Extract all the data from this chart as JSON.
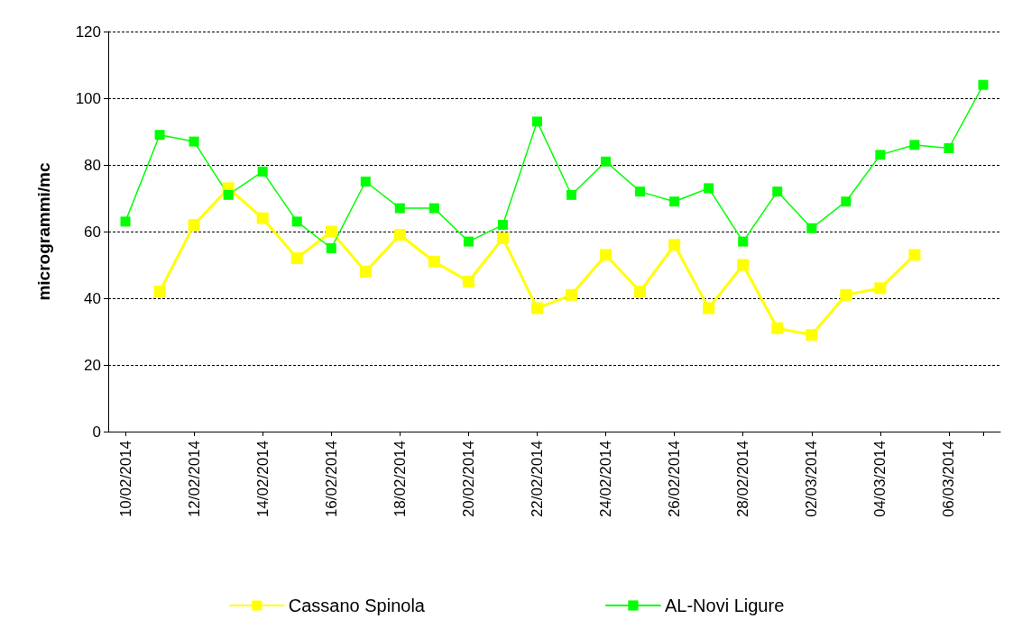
{
  "chart_data": {
    "type": "line",
    "ylabel": "microgrammi/mc",
    "categories": [
      "10/02/2014",
      null,
      "12/02/2014",
      null,
      "14/02/2014",
      null,
      "16/02/2014",
      null,
      "18/02/2014",
      null,
      "20/02/2014",
      null,
      "22/02/2014",
      null,
      "24/02/2014",
      null,
      "26/02/2014",
      null,
      "28/02/2014",
      null,
      "02/03/2014",
      null,
      "04/03/2014",
      null,
      "06/03/2014",
      null
    ],
    "series": [
      {
        "name": "Cassano Spinola",
        "color": "#ffff00",
        "values": [
          null,
          42,
          62,
          73,
          64,
          52,
          60,
          48,
          59,
          51,
          45,
          58,
          37,
          41,
          53,
          42,
          56,
          37,
          50,
          31,
          29,
          41,
          43,
          53,
          null,
          null
        ]
      },
      {
        "name": "AL-Novi Ligure",
        "color": "#00ff00",
        "values": [
          63,
          89,
          87,
          71,
          78,
          63,
          55,
          75,
          67,
          67,
          57,
          62,
          93,
          71,
          81,
          72,
          69,
          73,
          57,
          72,
          61,
          69,
          83,
          86,
          85,
          104
        ]
      }
    ],
    "ylim": [
      0,
      120
    ],
    "yticks": [
      0,
      20,
      40,
      60,
      80,
      100,
      120
    ],
    "grid": "y",
    "legend": "bottom",
    "marker": "square",
    "line_style": "solid"
  }
}
